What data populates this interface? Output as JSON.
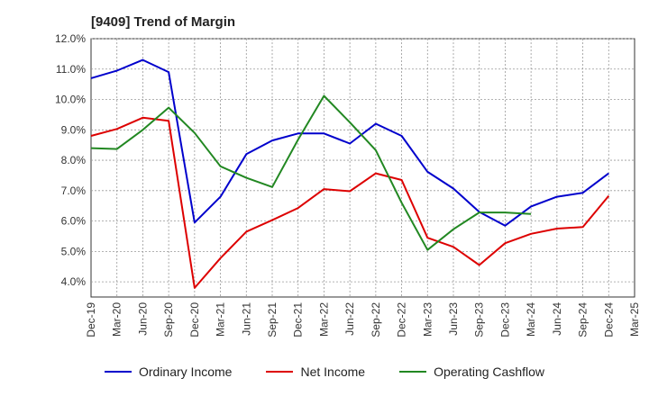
{
  "title": "[9409]  Trend of Margin",
  "chart_data": {
    "type": "line",
    "title": "[9409]  Trend of Margin",
    "xlabel": "",
    "ylabel": "",
    "categories": [
      "Dec-19",
      "Mar-20",
      "Jun-20",
      "Sep-20",
      "Dec-20",
      "Mar-21",
      "Jun-21",
      "Sep-21",
      "Dec-21",
      "Mar-22",
      "Jun-22",
      "Sep-22",
      "Dec-22",
      "Mar-23",
      "Jun-23",
      "Sep-23",
      "Dec-23",
      "Mar-24",
      "Jun-24",
      "Sep-24",
      "Dec-24",
      "Mar-25"
    ],
    "ylim": [
      3.5,
      12.0
    ],
    "yticks": [
      4.0,
      5.0,
      6.0,
      7.0,
      8.0,
      9.0,
      10.0,
      11.0,
      12.0
    ],
    "ytick_labels": [
      "4.0%",
      "5.0%",
      "6.0%",
      "7.0%",
      "8.0%",
      "9.0%",
      "10.0%",
      "11.0%",
      "12.0%"
    ],
    "grid": true,
    "legend_position": "bottom",
    "series": [
      {
        "name": "Ordinary Income",
        "color": "#0000cc",
        "values": [
          10.7,
          10.95,
          11.3,
          10.9,
          5.95,
          6.8,
          8.2,
          8.65,
          8.88,
          8.88,
          8.55,
          9.2,
          8.8,
          7.62,
          7.07,
          6.3,
          5.85,
          6.48,
          6.8,
          6.93,
          7.57,
          null
        ]
      },
      {
        "name": "Net Income",
        "color": "#dd0000",
        "values": [
          8.8,
          9.03,
          9.4,
          9.3,
          3.8,
          4.78,
          5.65,
          6.03,
          6.43,
          7.05,
          6.98,
          7.57,
          7.35,
          5.45,
          5.15,
          4.55,
          5.27,
          5.58,
          5.75,
          5.8,
          6.83,
          null
        ]
      },
      {
        "name": "Operating Cashflow",
        "color": "#228822",
        "values": [
          8.4,
          8.37,
          9.0,
          9.73,
          8.9,
          7.8,
          7.42,
          7.12,
          8.68,
          10.12,
          9.25,
          8.33,
          6.6,
          5.05,
          5.73,
          6.28,
          6.28,
          6.23,
          null,
          null,
          null,
          null
        ]
      }
    ]
  }
}
